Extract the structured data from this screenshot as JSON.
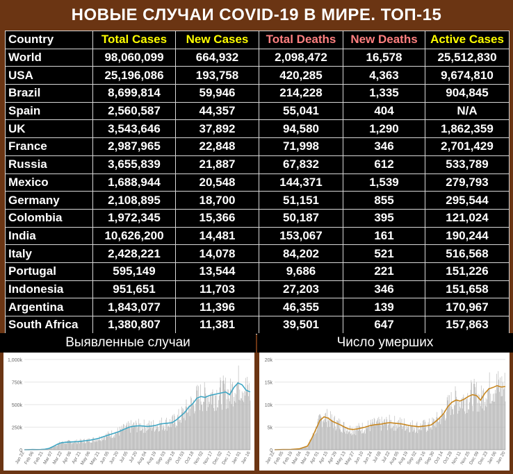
{
  "title": "НОВЫЕ СЛУЧАИ COVID-19 В МИРЕ. ТОП-15",
  "table": {
    "headers": [
      "Country",
      "Total Cases",
      "New Cases",
      "Total Deaths",
      "New Deaths",
      "Active Cases"
    ],
    "header_colors": [
      "#ffffff",
      "#ffff00",
      "#ffff00",
      "#ff8080",
      "#ff8080",
      "#ffff00"
    ],
    "rows": [
      [
        "World",
        "98,060,099",
        "664,932",
        "2,098,472",
        "16,578",
        "25,512,830"
      ],
      [
        "USA",
        "25,196,086",
        "193,758",
        "420,285",
        "4,363",
        "9,674,810"
      ],
      [
        "Brazil",
        "8,699,814",
        "59,946",
        "214,228",
        "1,335",
        "904,845"
      ],
      [
        "Spain",
        "2,560,587",
        "44,357",
        "55,041",
        "404",
        "N/A"
      ],
      [
        "UK",
        "3,543,646",
        "37,892",
        "94,580",
        "1,290",
        "1,862,359"
      ],
      [
        "France",
        "2,987,965",
        "22,848",
        "71,998",
        "346",
        "2,701,429"
      ],
      [
        "Russia",
        "3,655,839",
        "21,887",
        "67,832",
        "612",
        "533,789"
      ],
      [
        "Mexico",
        "1,688,944",
        "20,548",
        "144,371",
        "1,539",
        "279,793"
      ],
      [
        "Germany",
        "2,108,895",
        "18,700",
        "51,151",
        "855",
        "295,544"
      ],
      [
        "Colombia",
        "1,972,345",
        "15,366",
        "50,187",
        "395",
        "121,024"
      ],
      [
        "India",
        "10,626,200",
        "14,481",
        "153,067",
        "161",
        "190,244"
      ],
      [
        "Italy",
        "2,428,221",
        "14,078",
        "84,202",
        "521",
        "516,568"
      ],
      [
        "Portugal",
        "595,149",
        "13,544",
        "9,686",
        "221",
        "151,226"
      ],
      [
        "Indonesia",
        "951,651",
        "11,703",
        "27,203",
        "346",
        "151,658"
      ],
      [
        "Argentina",
        "1,843,077",
        "11,396",
        "46,355",
        "139",
        "170,967"
      ],
      [
        "South Africa",
        "1,380,807",
        "11,381",
        "39,501",
        "647",
        "157,863"
      ]
    ]
  },
  "chart_data": [
    {
      "type": "bar",
      "title": "Выявленные случаи",
      "xlabel": "",
      "ylabel": "",
      "ylim": [
        0,
        1000000
      ],
      "yticks": [
        "0",
        "250k",
        "500k",
        "750k",
        "1,000k"
      ],
      "ytick_values": [
        0,
        250000,
        500000,
        750000,
        1000000
      ],
      "x_tick_labels": [
        "Jan 22",
        "Feb 06",
        "Feb 21",
        "Mar 07",
        "Mar 22",
        "Apr 06",
        "Apr 21",
        "May 06",
        "May 21",
        "Jun 05",
        "Jun 20",
        "Jul 05",
        "Jul 20",
        "Aug 04",
        "Aug 19",
        "Sep 03",
        "Sep 18",
        "Oct 03",
        "Oct 18",
        "Nov 02",
        "Nov 17",
        "Dec 02",
        "Dec 17",
        "Jan 01",
        "Jan 16"
      ],
      "bar_color": "#b0b0b0",
      "line_color": "#3ea6c4",
      "trend_points": [
        [
          0,
          0
        ],
        [
          7,
          1000
        ],
        [
          14,
          2000
        ],
        [
          21,
          1500
        ],
        [
          28,
          2500
        ],
        [
          35,
          5000
        ],
        [
          42,
          15000
        ],
        [
          49,
          35000
        ],
        [
          56,
          60000
        ],
        [
          63,
          78000
        ],
        [
          70,
          82000
        ],
        [
          77,
          85000
        ],
        [
          84,
          88000
        ],
        [
          91,
          90000
        ],
        [
          98,
          95000
        ],
        [
          105,
          100000
        ],
        [
          112,
          105000
        ],
        [
          119,
          115000
        ],
        [
          126,
          125000
        ],
        [
          133,
          140000
        ],
        [
          140,
          155000
        ],
        [
          147,
          170000
        ],
        [
          154,
          185000
        ],
        [
          161,
          200000
        ],
        [
          168,
          220000
        ],
        [
          175,
          240000
        ],
        [
          182,
          255000
        ],
        [
          189,
          262000
        ],
        [
          196,
          265000
        ],
        [
          203,
          262000
        ],
        [
          210,
          258000
        ],
        [
          217,
          262000
        ],
        [
          224,
          270000
        ],
        [
          231,
          285000
        ],
        [
          238,
          290000
        ],
        [
          245,
          295000
        ],
        [
          252,
          300000
        ],
        [
          259,
          330000
        ],
        [
          266,
          370000
        ],
        [
          273,
          410000
        ],
        [
          280,
          470000
        ],
        [
          287,
          510000
        ],
        [
          294,
          570000
        ],
        [
          301,
          590000
        ],
        [
          308,
          580000
        ],
        [
          315,
          600000
        ],
        [
          322,
          610000
        ],
        [
          329,
          620000
        ],
        [
          336,
          630000
        ],
        [
          343,
          640000
        ],
        [
          350,
          610000
        ],
        [
          357,
          690000
        ],
        [
          364,
          740000
        ],
        [
          371,
          720000
        ],
        [
          378,
          660000
        ],
        [
          385,
          640000
        ]
      ],
      "x_max": 385
    },
    {
      "type": "bar",
      "title": "Число умерших",
      "xlabel": "",
      "ylabel": "",
      "ylim": [
        0,
        20000
      ],
      "yticks": [
        "0",
        "5k",
        "10k",
        "15k",
        "20k"
      ],
      "ytick_values": [
        0,
        5000,
        10000,
        15000,
        20000
      ],
      "x_tick_labels": [
        "Jan 22",
        "Feb 05",
        "Feb 19",
        "Mar 04",
        "Mar 18",
        "Apr 01",
        "Apr 15",
        "Apr 29",
        "May 13",
        "May 27",
        "Jun 10",
        "Jun 24",
        "Jul 08",
        "Jul 22",
        "Aug 05",
        "Aug 19",
        "Sep 02",
        "Sep 16",
        "Sep 30",
        "Oct 14",
        "Oct 28",
        "Nov 11",
        "Nov 25",
        "Dec 09",
        "Dec 23",
        "Jan 06",
        "Jan 20"
      ],
      "bar_color": "#b0b0b0",
      "line_color": "#c8861e",
      "trend_points": [
        [
          0,
          0
        ],
        [
          14,
          50
        ],
        [
          28,
          80
        ],
        [
          42,
          200
        ],
        [
          56,
          800
        ],
        [
          63,
          2500
        ],
        [
          70,
          4500
        ],
        [
          77,
          6500
        ],
        [
          84,
          7300
        ],
        [
          91,
          7000
        ],
        [
          98,
          6300
        ],
        [
          105,
          5900
        ],
        [
          112,
          5500
        ],
        [
          119,
          5000
        ],
        [
          126,
          4600
        ],
        [
          133,
          4500
        ],
        [
          140,
          4600
        ],
        [
          147,
          4800
        ],
        [
          154,
          5000
        ],
        [
          161,
          5300
        ],
        [
          168,
          5500
        ],
        [
          175,
          5600
        ],
        [
          182,
          5700
        ],
        [
          189,
          5900
        ],
        [
          196,
          6000
        ],
        [
          203,
          5900
        ],
        [
          210,
          5800
        ],
        [
          217,
          5700
        ],
        [
          224,
          5500
        ],
        [
          231,
          5300
        ],
        [
          238,
          5200
        ],
        [
          245,
          5100
        ],
        [
          252,
          5200
        ],
        [
          259,
          5300
        ],
        [
          266,
          5500
        ],
        [
          273,
          6200
        ],
        [
          280,
          7000
        ],
        [
          287,
          8000
        ],
        [
          294,
          9500
        ],
        [
          301,
          10500
        ],
        [
          308,
          11000
        ],
        [
          315,
          10800
        ],
        [
          322,
          11200
        ],
        [
          329,
          11800
        ],
        [
          336,
          12200
        ],
        [
          343,
          12000
        ],
        [
          350,
          11000
        ],
        [
          357,
          12500
        ],
        [
          364,
          13500
        ],
        [
          371,
          13800
        ],
        [
          378,
          14200
        ],
        [
          385,
          13900
        ],
        [
          392,
          14000
        ]
      ],
      "x_max": 392
    }
  ]
}
